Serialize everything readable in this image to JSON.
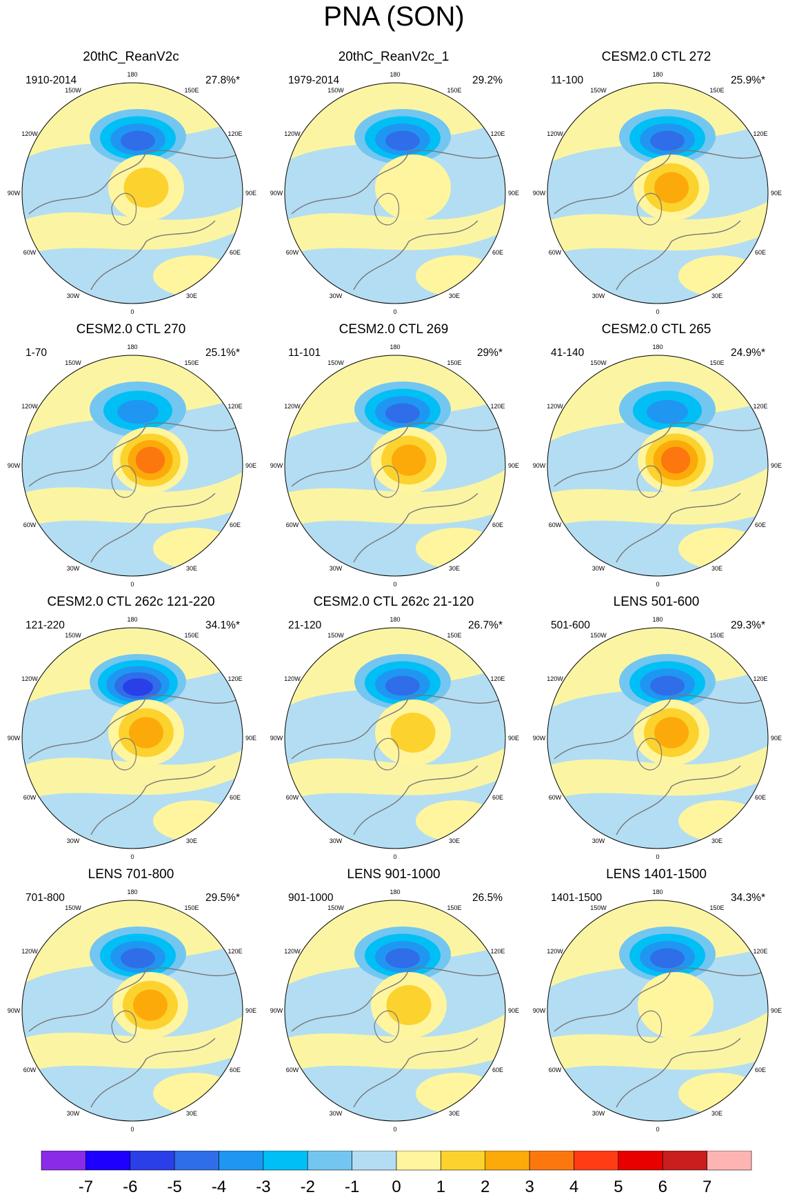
{
  "title": "PNA (SON)",
  "chart_data": {
    "type": "polar-stereographic-contour-map",
    "projection": "Northern Hemisphere polar stereographic",
    "lon_labels": [
      "180",
      "150E",
      "120E",
      "90E",
      "60E",
      "30E",
      "0",
      "30W",
      "60W",
      "90W",
      "120W",
      "150W"
    ],
    "panels": [
      {
        "title": "20thC_ReanV2c",
        "period": "1910-2014",
        "variance": "27.8%*",
        "min": -4,
        "max": 2
      },
      {
        "title": "20thC_ReanV2c_1",
        "period": "1979-2014",
        "variance": "29.2%",
        "min": -4,
        "max": 1
      },
      {
        "title": "CESM2.0 CTL 272",
        "period": "11-100",
        "variance": "25.9%*",
        "min": -4,
        "max": 3
      },
      {
        "title": "CESM2.0 CTL 270",
        "period": "1-70",
        "variance": "25.1%*",
        "min": -3,
        "max": 4
      },
      {
        "title": "CESM2.0 CTL 269",
        "period": "11-101",
        "variance": "29%*",
        "min": -4,
        "max": 3
      },
      {
        "title": "CESM2.0 CTL 265",
        "period": "41-140",
        "variance": "24.9%*",
        "min": -3,
        "max": 4
      },
      {
        "title": "CESM2.0 CTL 262c 121-220",
        "period": "121-220",
        "variance": "34.1%*",
        "min": -5,
        "max": 3
      },
      {
        "title": "CESM2.0 CTL 262c 21-120",
        "period": "21-120",
        "variance": "26.7%*",
        "min": -4,
        "max": 2
      },
      {
        "title": "LENS 501-600",
        "period": "501-600",
        "variance": "29.3%*",
        "min": -4,
        "max": 3
      },
      {
        "title": "LENS 701-800",
        "period": "701-800",
        "variance": "29.5%*",
        "min": -4,
        "max": 3
      },
      {
        "title": "LENS 901-1000",
        "period": "901-1000",
        "variance": "26.5%",
        "min": -4,
        "max": 2
      },
      {
        "title": "LENS 1401-1500",
        "period": "1401-1500",
        "variance": "34.3%*",
        "min": -4,
        "max": 1
      }
    ],
    "colorbar": {
      "labels": [
        "-7",
        "-6",
        "-5",
        "-4",
        "-3",
        "-2",
        "-1",
        "0",
        "1",
        "2",
        "3",
        "4",
        "5",
        "6",
        "7"
      ],
      "colors": [
        "#8a2be8",
        "#1e00ff",
        "#2a3fe8",
        "#2f6ee8",
        "#1f97f2",
        "#00bff5",
        "#73c6f0",
        "#b3ddf2",
        "#fff59e",
        "#fcd22e",
        "#fcaa0a",
        "#fc780f",
        "#ff3c14",
        "#e80000",
        "#c81e1e",
        "#ffb4b4"
      ]
    }
  },
  "style": {
    "neg_color": "#b3ddf2",
    "pos_color": "#fff59e",
    "coast_color": "#777777"
  }
}
